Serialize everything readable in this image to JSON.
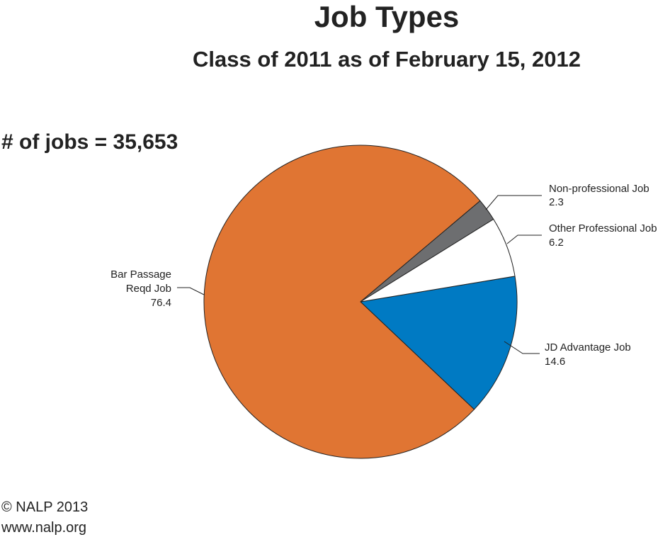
{
  "chart_data": {
    "type": "pie",
    "title": "Job Types",
    "subtitle": "Class of 2011 as of February 15, 2012",
    "annotation": "# of jobs = 35,653",
    "categories": [
      "JD Advantage Job",
      "Bar Passage\nReqd Job",
      "Non-professional Job",
      "Other Professional Job"
    ],
    "values": [
      14.6,
      76.4,
      2.3,
      6.2
    ],
    "colors": [
      "#007ac3",
      "#e07533",
      "#6d6e70",
      "#ffffff"
    ],
    "footer": [
      "© NALP 2013",
      "www.nalp.org"
    ]
  }
}
